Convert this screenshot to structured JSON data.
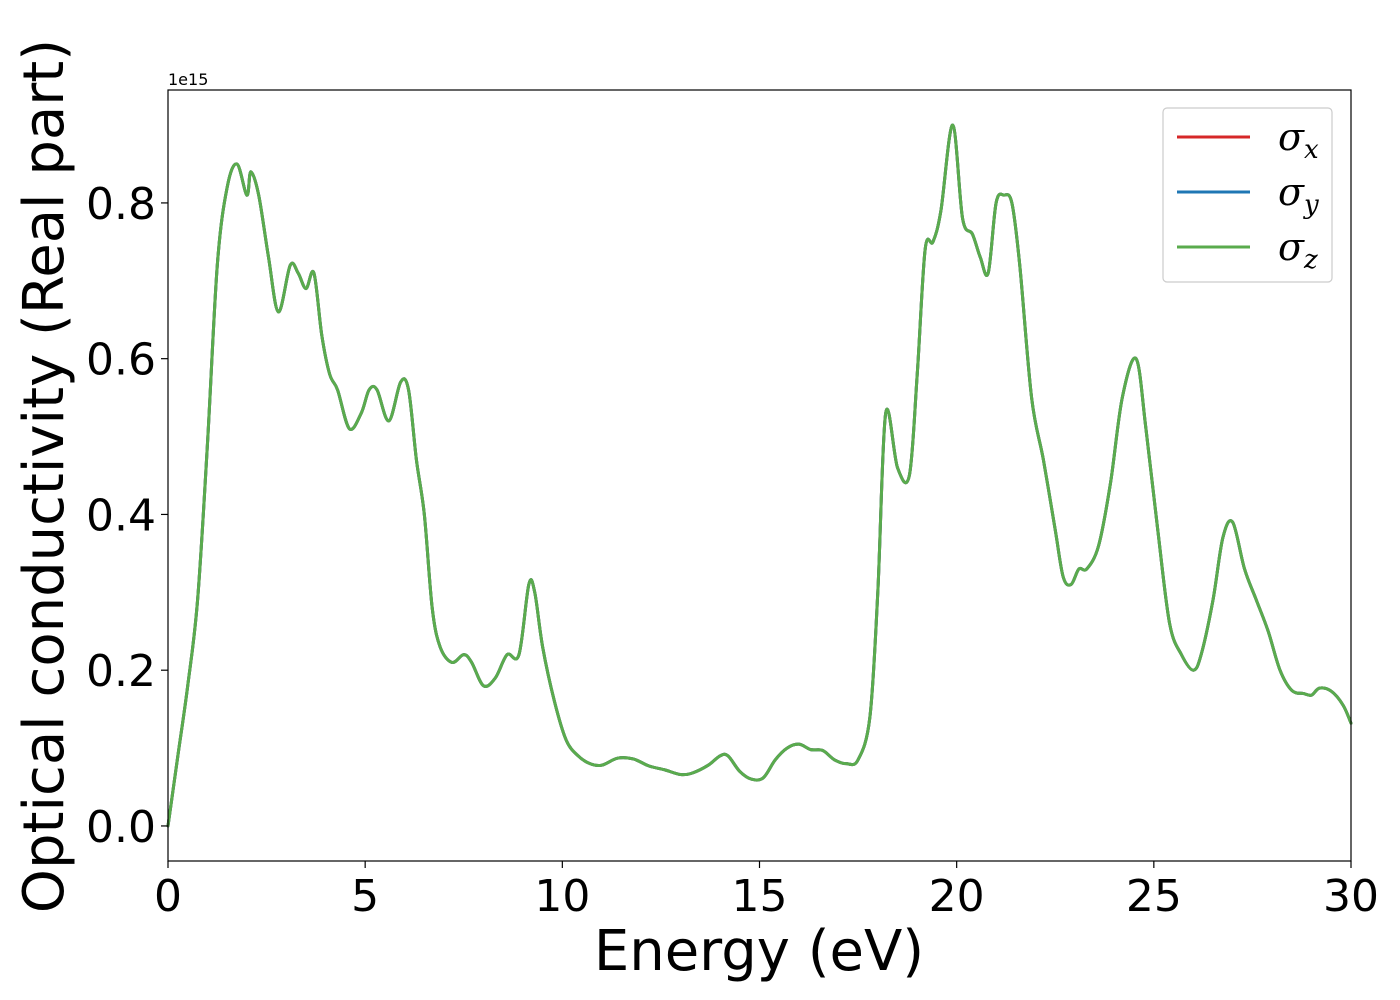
{
  "chart_data": {
    "type": "line",
    "title": "",
    "xlabel": "Energy (eV)",
    "ylabel": "Optical conductivity (Real part)",
    "y_offset_label": "1e15",
    "xlim": [
      0,
      30
    ],
    "ylim": [
      -0.045,
      0.945
    ],
    "xticks": [
      0,
      5,
      10,
      15,
      20,
      25,
      30
    ],
    "yticks": [
      0.0,
      0.2,
      0.4,
      0.6,
      0.8
    ],
    "xtick_labels": [
      "0",
      "5",
      "10",
      "15",
      "20",
      "25",
      "30"
    ],
    "ytick_labels": [
      "0.0",
      "0.2",
      "0.4",
      "0.6",
      "0.8"
    ],
    "grid": false,
    "legend_position": "top-right",
    "x": [
      0,
      0.25,
      0.5,
      0.75,
      1.0,
      1.25,
      1.5,
      1.75,
      2.0,
      2.1,
      2.3,
      2.55,
      2.8,
      3.1,
      3.3,
      3.5,
      3.7,
      3.9,
      4.1,
      4.3,
      4.6,
      4.9,
      5.1,
      5.3,
      5.6,
      5.9,
      6.1,
      6.3,
      6.5,
      6.7,
      6.9,
      7.2,
      7.5,
      7.7,
      8.0,
      8.3,
      8.6,
      8.9,
      9.15,
      9.3,
      9.5,
      9.8,
      10.1,
      10.4,
      10.7,
      11.0,
      11.4,
      11.8,
      12.2,
      12.6,
      13.0,
      13.3,
      13.7,
      14.0,
      14.2,
      14.5,
      14.8,
      15.1,
      15.4,
      15.7,
      16.0,
      16.3,
      16.6,
      16.9,
      17.2,
      17.5,
      17.8,
      18.0,
      18.2,
      18.5,
      18.8,
      19.0,
      19.2,
      19.4,
      19.6,
      19.9,
      20.15,
      20.4,
      20.6,
      20.8,
      21.0,
      21.2,
      21.4,
      21.6,
      21.9,
      22.2,
      22.5,
      22.7,
      22.9,
      23.1,
      23.3,
      23.6,
      23.9,
      24.2,
      24.55,
      24.8,
      25.1,
      25.4,
      25.7,
      26.0,
      26.2,
      26.5,
      26.75,
      27.0,
      27.3,
      27.6,
      27.9,
      28.2,
      28.5,
      28.8,
      29.0,
      29.2,
      29.5,
      29.8,
      30.0
    ],
    "series": [
      {
        "name": "σx",
        "color": "#d62728",
        "y": [
          0.0,
          0.09,
          0.18,
          0.29,
          0.49,
          0.72,
          0.82,
          0.85,
          0.81,
          0.84,
          0.81,
          0.73,
          0.66,
          0.72,
          0.71,
          0.69,
          0.71,
          0.63,
          0.58,
          0.56,
          0.51,
          0.53,
          0.56,
          0.56,
          0.52,
          0.57,
          0.56,
          0.47,
          0.4,
          0.28,
          0.23,
          0.21,
          0.22,
          0.21,
          0.18,
          0.19,
          0.22,
          0.22,
          0.31,
          0.3,
          0.23,
          0.16,
          0.11,
          0.09,
          0.08,
          0.078,
          0.087,
          0.086,
          0.077,
          0.072,
          0.066,
          0.068,
          0.078,
          0.09,
          0.09,
          0.07,
          0.06,
          0.062,
          0.085,
          0.1,
          0.105,
          0.098,
          0.097,
          0.085,
          0.08,
          0.085,
          0.14,
          0.3,
          0.53,
          0.46,
          0.45,
          0.58,
          0.74,
          0.75,
          0.79,
          0.9,
          0.78,
          0.76,
          0.73,
          0.71,
          0.8,
          0.81,
          0.8,
          0.72,
          0.55,
          0.47,
          0.38,
          0.32,
          0.31,
          0.33,
          0.33,
          0.36,
          0.44,
          0.55,
          0.6,
          0.51,
          0.38,
          0.26,
          0.22,
          0.2,
          0.22,
          0.29,
          0.37,
          0.39,
          0.33,
          0.29,
          0.25,
          0.2,
          0.174,
          0.17,
          0.168,
          0.177,
          0.173,
          0.155,
          0.132
        ]
      },
      {
        "name": "σy",
        "color": "#1f77b4",
        "y": [
          0.0,
          0.09,
          0.18,
          0.29,
          0.49,
          0.72,
          0.82,
          0.85,
          0.81,
          0.84,
          0.81,
          0.73,
          0.66,
          0.72,
          0.71,
          0.69,
          0.71,
          0.63,
          0.58,
          0.56,
          0.51,
          0.53,
          0.56,
          0.56,
          0.52,
          0.57,
          0.56,
          0.47,
          0.4,
          0.28,
          0.23,
          0.21,
          0.22,
          0.21,
          0.18,
          0.19,
          0.22,
          0.22,
          0.31,
          0.3,
          0.23,
          0.16,
          0.11,
          0.09,
          0.08,
          0.078,
          0.087,
          0.086,
          0.077,
          0.072,
          0.066,
          0.068,
          0.078,
          0.09,
          0.09,
          0.07,
          0.06,
          0.062,
          0.085,
          0.1,
          0.105,
          0.098,
          0.097,
          0.085,
          0.08,
          0.085,
          0.14,
          0.3,
          0.53,
          0.46,
          0.45,
          0.58,
          0.74,
          0.75,
          0.79,
          0.9,
          0.78,
          0.76,
          0.73,
          0.71,
          0.8,
          0.81,
          0.8,
          0.72,
          0.55,
          0.47,
          0.38,
          0.32,
          0.31,
          0.33,
          0.33,
          0.36,
          0.44,
          0.55,
          0.6,
          0.51,
          0.38,
          0.26,
          0.22,
          0.2,
          0.22,
          0.29,
          0.37,
          0.39,
          0.33,
          0.29,
          0.25,
          0.2,
          0.174,
          0.17,
          0.168,
          0.177,
          0.173,
          0.155,
          0.132
        ]
      },
      {
        "name": "σz",
        "color": "#5aab4d",
        "y": [
          0.0,
          0.09,
          0.18,
          0.29,
          0.49,
          0.72,
          0.82,
          0.85,
          0.81,
          0.84,
          0.81,
          0.73,
          0.66,
          0.72,
          0.71,
          0.69,
          0.71,
          0.63,
          0.58,
          0.56,
          0.51,
          0.53,
          0.56,
          0.56,
          0.52,
          0.57,
          0.56,
          0.47,
          0.4,
          0.28,
          0.23,
          0.21,
          0.22,
          0.21,
          0.18,
          0.19,
          0.22,
          0.22,
          0.31,
          0.3,
          0.23,
          0.16,
          0.11,
          0.09,
          0.08,
          0.078,
          0.087,
          0.086,
          0.077,
          0.072,
          0.066,
          0.068,
          0.078,
          0.09,
          0.09,
          0.07,
          0.06,
          0.062,
          0.085,
          0.1,
          0.105,
          0.098,
          0.097,
          0.085,
          0.08,
          0.085,
          0.14,
          0.3,
          0.53,
          0.46,
          0.45,
          0.58,
          0.74,
          0.75,
          0.79,
          0.9,
          0.78,
          0.76,
          0.73,
          0.71,
          0.8,
          0.81,
          0.8,
          0.72,
          0.55,
          0.47,
          0.38,
          0.32,
          0.31,
          0.33,
          0.33,
          0.36,
          0.44,
          0.55,
          0.6,
          0.51,
          0.38,
          0.26,
          0.22,
          0.2,
          0.22,
          0.29,
          0.37,
          0.39,
          0.33,
          0.29,
          0.25,
          0.2,
          0.174,
          0.17,
          0.168,
          0.177,
          0.173,
          0.155,
          0.132
        ]
      }
    ],
    "legend": [
      {
        "symbol": "σ",
        "sub": "x",
        "color": "#d62728"
      },
      {
        "symbol": "σ",
        "sub": "y",
        "color": "#1f77b4"
      },
      {
        "symbol": "σ",
        "sub": "z",
        "color": "#5aab4d"
      }
    ]
  }
}
